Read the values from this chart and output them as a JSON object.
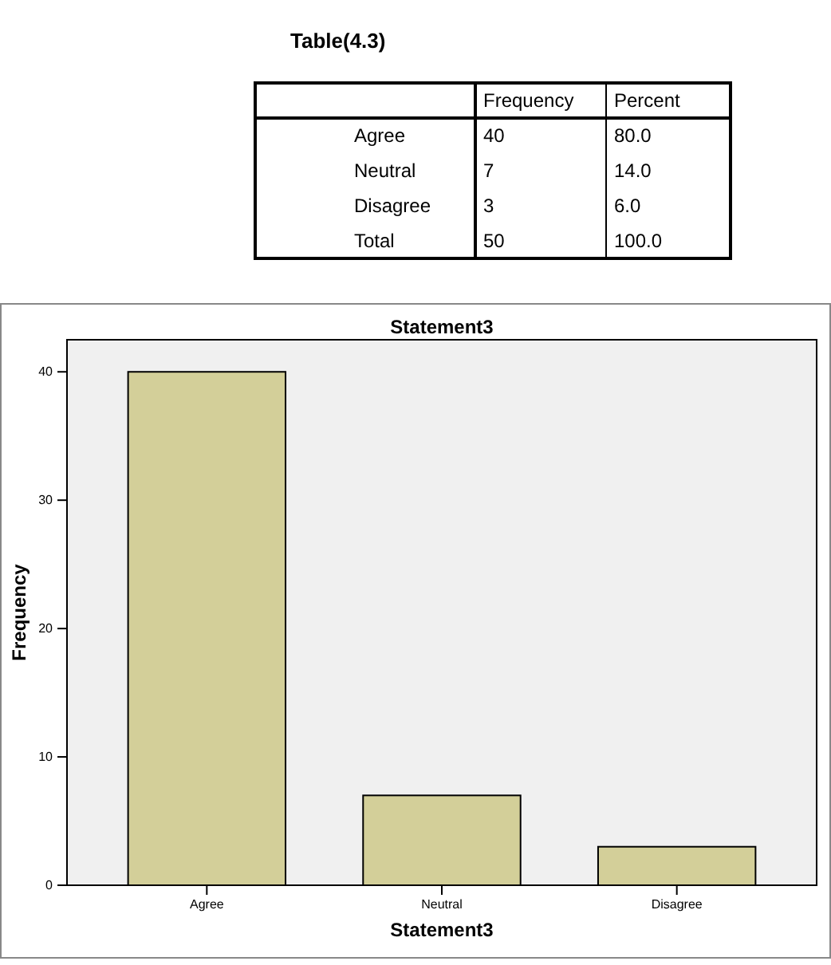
{
  "chart_data": [
    {
      "type": "other",
      "title": "Table(4.3)",
      "categories": [
        "Frequency",
        "Percent"
      ],
      "y_categories": [
        "Agree",
        "Neutral",
        "Disagree",
        "Total"
      ],
      "cell_labels": [
        [
          "40",
          "80.0"
        ],
        [
          "7",
          "14.0"
        ],
        [
          "3",
          "6.0"
        ],
        [
          "50",
          "100.0"
        ]
      ]
    },
    {
      "type": "bar",
      "title": "Statement3",
      "xlabel": "Statement3",
      "ylabel": "Frequency",
      "categories": [
        "Agree",
        "Neutral",
        "Disagree"
      ],
      "values": [
        40,
        7,
        3
      ],
      "color": "#d3cf99",
      "ylim": [
        0,
        42.5
      ],
      "yticks": [
        0,
        10,
        20,
        30,
        40
      ],
      "grid": false
    }
  ]
}
